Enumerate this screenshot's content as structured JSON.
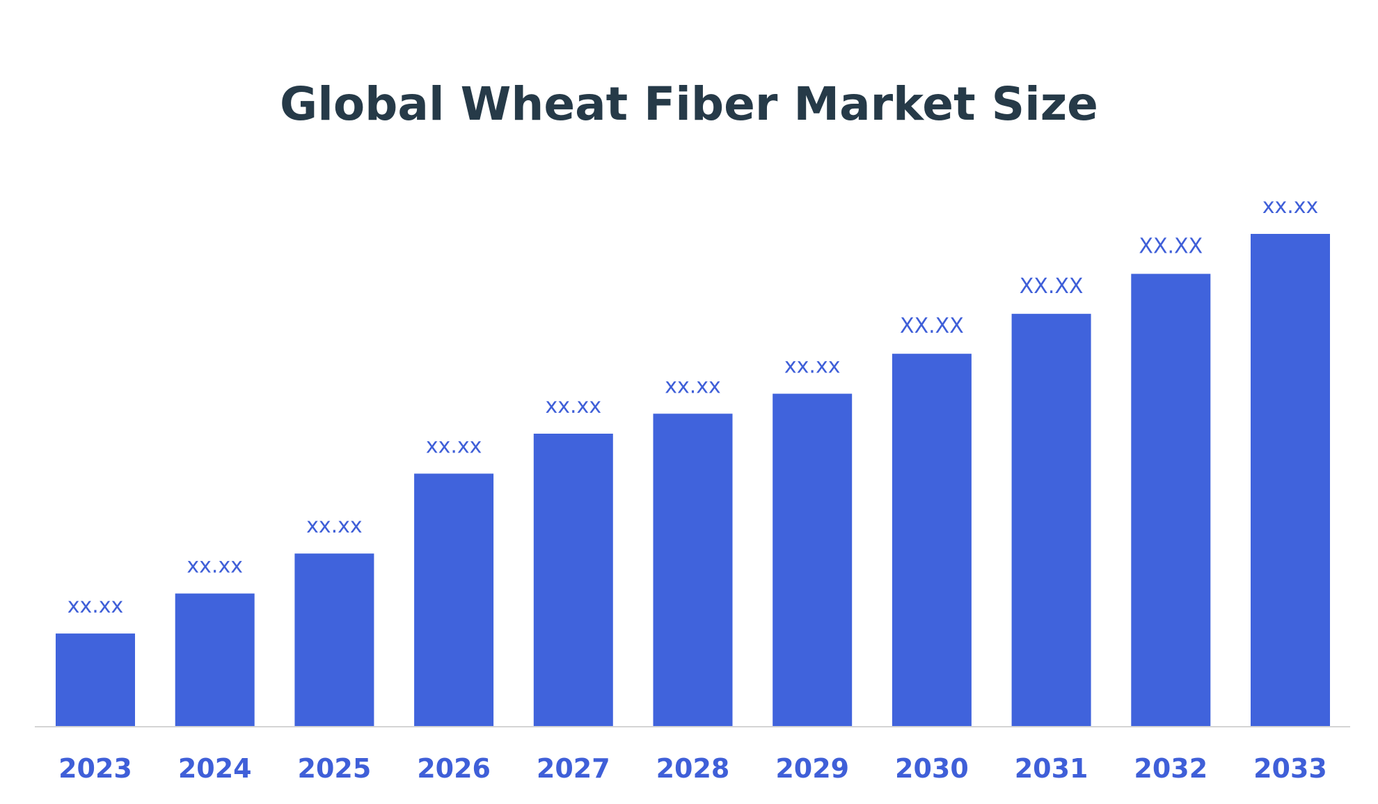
{
  "chart_data": {
    "type": "bar",
    "title": "Global Wheat Fiber Market Size",
    "xlabel": "",
    "ylabel": "",
    "categories": [
      "2023",
      "2024",
      "2025",
      "2026",
      "2027",
      "2028",
      "2029",
      "2030",
      "2031",
      "2032",
      "2033"
    ],
    "values": [
      14,
      20,
      26,
      38,
      44,
      47,
      50,
      56,
      62,
      68,
      74
    ],
    "data_labels": [
      "xx.xx",
      "xx.xx",
      "xx.xx",
      "xx.xx",
      "xx.xx",
      "xx.xx",
      "xx.xx",
      "XX.XX",
      "XX.XX",
      "XX.XX",
      "xx.xx"
    ],
    "ylim": [
      0,
      74
    ],
    "grid": false,
    "legend": "none",
    "axis_visible": false
  },
  "colors": {
    "bar": "#4063dc",
    "title": "#263a48",
    "label": "#3f5fd8",
    "axis_line": "#d4d4d4"
  }
}
